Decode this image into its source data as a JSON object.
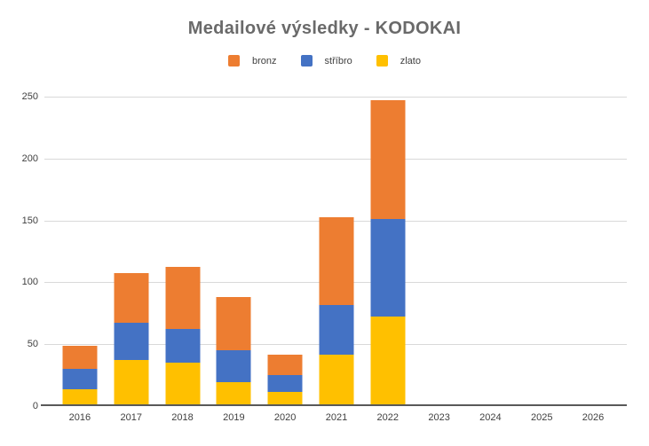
{
  "page": {
    "background": "#ffffff"
  },
  "chart_data": {
    "type": "bar",
    "stacked": true,
    "title": "Medailové výsledky - KODOKAI",
    "title_color": "#6a6a6a",
    "categories": [
      "2016",
      "2017",
      "2018",
      "2019",
      "2020",
      "2021",
      "2022",
      "2023",
      "2024",
      "2025",
      "2026"
    ],
    "series": [
      {
        "key": "bronz",
        "name": "bronz",
        "color": "#ED7D31",
        "values": [
          18,
          40,
          50,
          43,
          16,
          71,
          96,
          0,
          0,
          0,
          0
        ]
      },
      {
        "key": "stribro",
        "name": "stříbro",
        "color": "#4472C4",
        "values": [
          17,
          30,
          27,
          26,
          14,
          40,
          79,
          0,
          0,
          0,
          0
        ]
      },
      {
        "key": "zlato",
        "name": "zlato",
        "color": "#FFC000",
        "values": [
          12,
          36,
          34,
          18,
          10,
          40,
          71,
          0,
          0,
          0,
          0
        ]
      }
    ],
    "stack_order_bottom_to_top": [
      "zlato",
      "stříbro",
      "bronz"
    ],
    "stack_totals": [
      47,
      106,
      111,
      87,
      40,
      151,
      246,
      0,
      0,
      0,
      0
    ],
    "xlabel": "",
    "ylabel": "",
    "ylim": [
      0,
      250
    ],
    "yticks": [
      0,
      50,
      100,
      150,
      200,
      250
    ],
    "grid": true,
    "grid_color": "#d9d9d9",
    "axis_color": "#595959",
    "tick_color": "#404040",
    "legend_position": "top"
  }
}
